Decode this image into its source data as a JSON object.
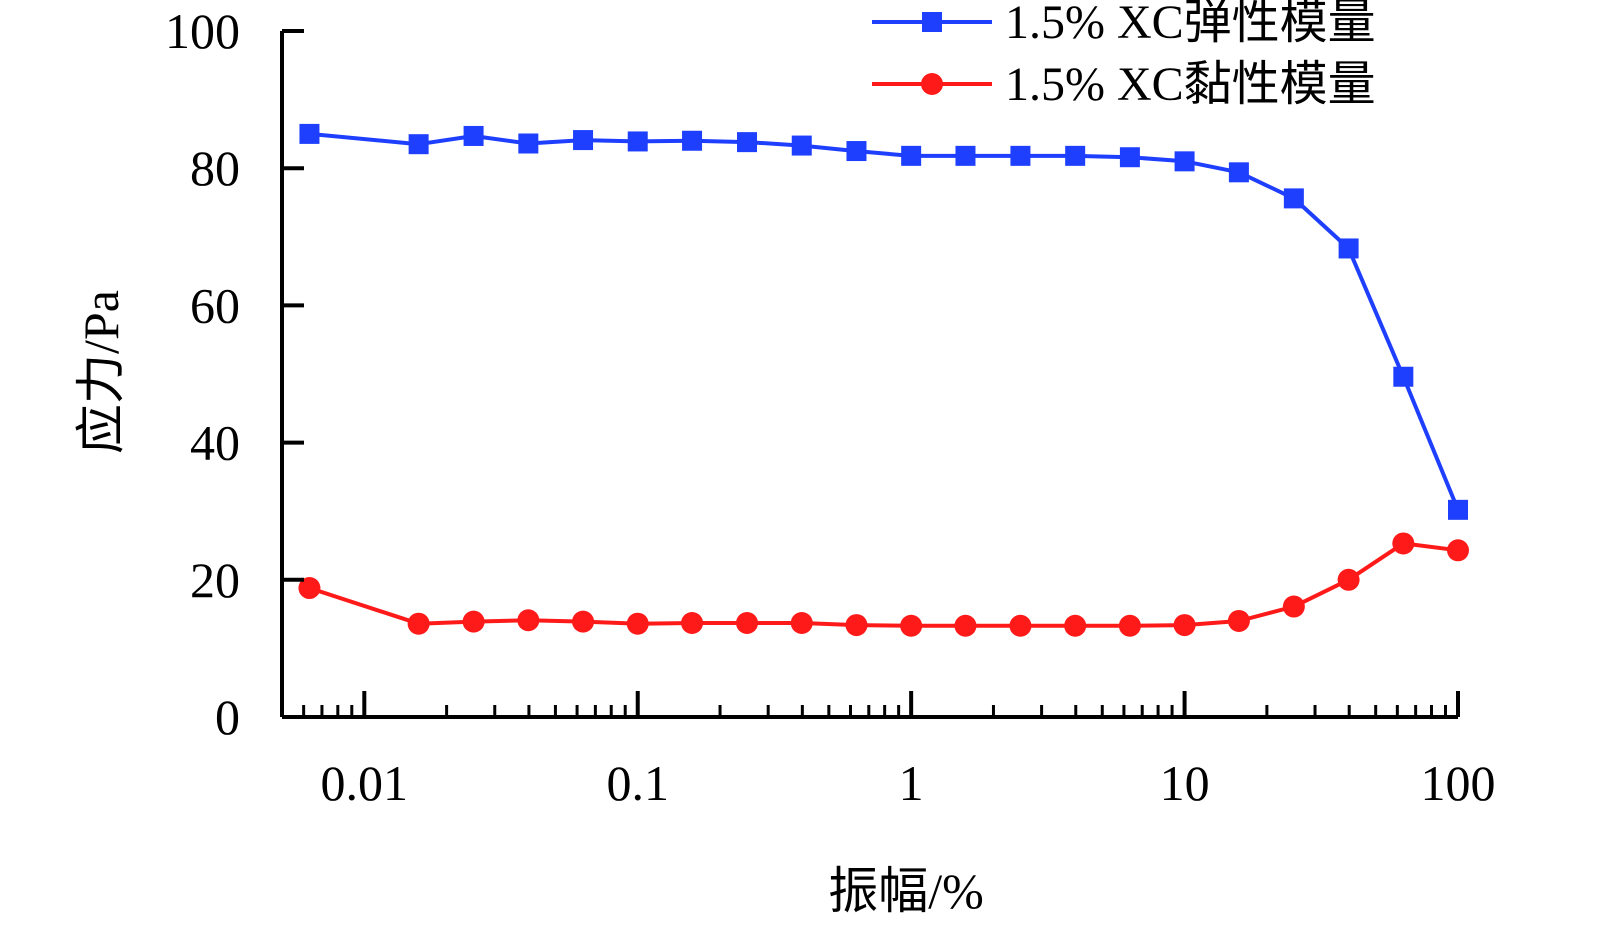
{
  "chart_data": {
    "type": "line",
    "xscale": "log",
    "xlabel": "振幅/%",
    "ylabel": "应力/Pa",
    "xlim": [
      0.005,
      100
    ],
    "ylim": [
      0,
      100
    ],
    "xticks": [
      0.01,
      0.1,
      1,
      10,
      100
    ],
    "xtick_labels": [
      "0.01",
      "0.1",
      "1",
      "10",
      "100"
    ],
    "yticks": [
      0,
      20,
      40,
      60,
      80,
      100
    ],
    "ytick_labels": [
      "0",
      "20",
      "40",
      "60",
      "80",
      "100"
    ],
    "grid": false,
    "legend_position": "top-right",
    "series": [
      {
        "name": "1.5% XC弹性模量",
        "color": "#1f3fff",
        "marker": "square",
        "x": [
          0.0063,
          0.0158,
          0.0251,
          0.0398,
          0.0631,
          0.1,
          0.158,
          0.251,
          0.398,
          0.631,
          1,
          1.58,
          2.51,
          3.98,
          6.31,
          10,
          15.8,
          25.1,
          39.8,
          63.1,
          100
        ],
        "y": [
          85.0,
          83.5,
          84.7,
          83.6,
          84.1,
          83.9,
          84.0,
          83.8,
          83.3,
          82.5,
          81.8,
          81.8,
          81.8,
          81.8,
          81.6,
          81.0,
          79.4,
          75.6,
          68.3,
          49.6,
          30.2
        ]
      },
      {
        "name": "1.5% XC黏性模量",
        "color": "#ff1a1a",
        "marker": "circle",
        "x": [
          0.0063,
          0.0158,
          0.0251,
          0.0398,
          0.0631,
          0.1,
          0.158,
          0.251,
          0.398,
          0.631,
          1,
          1.58,
          2.51,
          3.98,
          6.31,
          10,
          15.8,
          25.1,
          39.8,
          63.1,
          100
        ],
        "y": [
          18.8,
          13.6,
          13.9,
          14.1,
          13.9,
          13.6,
          13.7,
          13.7,
          13.7,
          13.4,
          13.3,
          13.3,
          13.3,
          13.3,
          13.3,
          13.4,
          14.0,
          16.1,
          20.0,
          25.3,
          24.3
        ]
      }
    ]
  }
}
